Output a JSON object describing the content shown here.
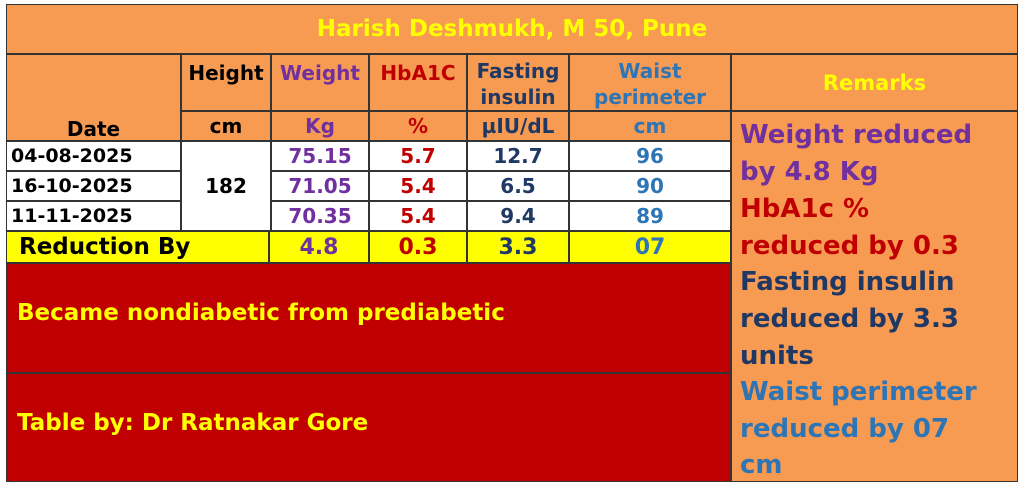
{
  "title": "Harish Deshmukh, M 50, Pune",
  "headers": {
    "date": "Date",
    "height": "Height",
    "weight": "Weight",
    "hba1c": "HbA1C",
    "fasting_insulin_1": "Fasting",
    "fasting_insulin_2": "insulin",
    "waist_1": "Waist",
    "waist_2": "perimeter",
    "remarks": "Remarks"
  },
  "units": {
    "height": "cm",
    "weight": "Kg",
    "hba1c": "%",
    "fasting_insulin": "µIU/dL",
    "waist": "cm"
  },
  "rows": [
    {
      "date": "04-08-2025",
      "weight": "75.15",
      "hba1c": "5.7",
      "fasting_insulin": "12.7",
      "waist": "96"
    },
    {
      "date": "16-10-2025",
      "weight": "71.05",
      "hba1c": "5.4",
      "fasting_insulin": "6.5",
      "waist": "90"
    },
    {
      "date": "11-11-2025",
      "weight": "70.35",
      "hba1c": "5.4",
      "fasting_insulin": "9.4",
      "waist": "89"
    }
  ],
  "height_value": "182",
  "reduction": {
    "label": "Reduction By",
    "weight": "4.8",
    "hba1c": "0.3",
    "fasting_insulin": "3.3",
    "waist": "07"
  },
  "remarks": {
    "weight_1": "Weight reduced",
    "weight_2": "by 4.8 Kg",
    "hba1c_1": "HbA1c %",
    "hba1c_2": "reduced by 0.3",
    "insulin_1": "Fasting insulin",
    "insulin_2": "reduced by 3.3",
    "insulin_3": "units",
    "waist_1": "Waist perimeter",
    "waist_2": "reduced by 07",
    "waist_3": "cm"
  },
  "conclusion": "Became nondiabetic from prediabetic",
  "credit": "Table by: Dr Ratnakar Gore",
  "colors": {
    "orange": "#f79a52",
    "yellow": "#ffff00",
    "dark_red": "#c00000",
    "purple": "#7030a0",
    "navy": "#1f3864",
    "blue": "#2e75b6"
  }
}
